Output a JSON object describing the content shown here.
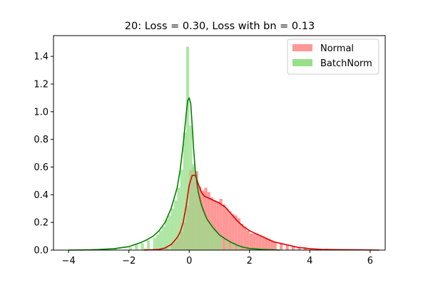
{
  "chart_data": {
    "type": "histogram-kde",
    "title": "20: Loss = 0.30, Loss with bn = 0.13",
    "xlabel": "",
    "ylabel": "",
    "xlim": [
      -4.5,
      6.5
    ],
    "ylim": [
      0,
      1.55
    ],
    "x_ticks": [
      -4,
      -2,
      0,
      2,
      4,
      6
    ],
    "x_tick_labels": [
      "−4",
      "−2",
      "0",
      "2",
      "4",
      "6"
    ],
    "y_ticks": [
      0.0,
      0.2,
      0.4,
      0.6,
      0.8,
      1.0,
      1.2,
      1.4
    ],
    "y_tick_labels": [
      "0.0",
      "0.2",
      "0.4",
      "0.6",
      "0.8",
      "1.0",
      "1.2",
      "1.4"
    ],
    "legend_position": "top-right",
    "series": [
      {
        "name": "Normal",
        "bar_color": "#ff9896",
        "line_color": "#dd0000",
        "bin_width": 0.1,
        "bins": [
          [
            -1.5,
            0.01
          ],
          [
            -1.0,
            0.01
          ],
          [
            -0.8,
            0.03
          ],
          [
            -0.6,
            0.05
          ],
          [
            -0.5,
            0.07
          ],
          [
            -0.4,
            0.09
          ],
          [
            -0.3,
            0.13
          ],
          [
            -0.2,
            0.2
          ],
          [
            -0.1,
            0.32
          ],
          [
            0.0,
            0.58
          ],
          [
            0.1,
            0.6
          ],
          [
            0.2,
            0.57
          ],
          [
            0.3,
            0.46
          ],
          [
            0.4,
            0.43
          ],
          [
            0.5,
            0.45
          ],
          [
            0.6,
            0.42
          ],
          [
            0.7,
            0.38
          ],
          [
            0.8,
            0.36
          ],
          [
            0.9,
            0.35
          ],
          [
            1.0,
            0.37
          ],
          [
            1.1,
            0.33
          ],
          [
            1.2,
            0.3
          ],
          [
            1.3,
            0.28
          ],
          [
            1.4,
            0.26
          ],
          [
            1.5,
            0.25
          ],
          [
            1.6,
            0.23
          ],
          [
            1.7,
            0.19
          ],
          [
            1.8,
            0.17
          ],
          [
            1.9,
            0.14
          ],
          [
            2.0,
            0.12
          ],
          [
            2.1,
            0.12
          ],
          [
            2.2,
            0.12
          ],
          [
            2.3,
            0.11
          ],
          [
            2.4,
            0.1
          ],
          [
            2.5,
            0.09
          ],
          [
            2.6,
            0.08
          ],
          [
            2.7,
            0.07
          ],
          [
            2.8,
            0.06
          ],
          [
            3.0,
            0.05
          ],
          [
            3.2,
            0.04
          ],
          [
            3.4,
            0.03
          ],
          [
            3.6,
            0.02
          ],
          [
            3.8,
            0.02
          ],
          [
            4.0,
            0.01
          ],
          [
            4.5,
            0.01
          ],
          [
            5.0,
            0.005
          ],
          [
            6.0,
            0.003
          ]
        ],
        "kde": [
          [
            -1.5,
            0.0
          ],
          [
            -1.0,
            0.005
          ],
          [
            -0.8,
            0.015
          ],
          [
            -0.6,
            0.04
          ],
          [
            -0.4,
            0.09
          ],
          [
            -0.3,
            0.13
          ],
          [
            -0.2,
            0.2
          ],
          [
            -0.1,
            0.32
          ],
          [
            0.0,
            0.47
          ],
          [
            0.1,
            0.54
          ],
          [
            0.2,
            0.54
          ],
          [
            0.3,
            0.48
          ],
          [
            0.4,
            0.42
          ],
          [
            0.5,
            0.39
          ],
          [
            0.6,
            0.38
          ],
          [
            0.7,
            0.37
          ],
          [
            0.8,
            0.36
          ],
          [
            0.9,
            0.35
          ],
          [
            1.0,
            0.34
          ],
          [
            1.2,
            0.31
          ],
          [
            1.4,
            0.26
          ],
          [
            1.6,
            0.21
          ],
          [
            1.8,
            0.17
          ],
          [
            2.0,
            0.14
          ],
          [
            2.2,
            0.12
          ],
          [
            2.4,
            0.1
          ],
          [
            2.6,
            0.08
          ],
          [
            2.8,
            0.06
          ],
          [
            3.0,
            0.05
          ],
          [
            3.2,
            0.04
          ],
          [
            3.4,
            0.03
          ],
          [
            3.6,
            0.02
          ],
          [
            3.8,
            0.015
          ],
          [
            4.0,
            0.01
          ],
          [
            4.4,
            0.005
          ],
          [
            5.0,
            0.003
          ],
          [
            5.6,
            0.002
          ],
          [
            6.3,
            0.0
          ]
        ]
      },
      {
        "name": "BatchNorm",
        "bar_color": "#98df8a",
        "line_color": "#008000",
        "bin_width": 0.1,
        "bins": [
          [
            -3.0,
            0.005
          ],
          [
            -2.5,
            0.01
          ],
          [
            -2.0,
            0.02
          ],
          [
            -1.8,
            0.04
          ],
          [
            -1.6,
            0.05
          ],
          [
            -1.4,
            0.07
          ],
          [
            -1.2,
            0.09
          ],
          [
            -1.1,
            0.11
          ],
          [
            -1.0,
            0.14
          ],
          [
            -0.9,
            0.17
          ],
          [
            -0.8,
            0.22
          ],
          [
            -0.7,
            0.25
          ],
          [
            -0.6,
            0.3
          ],
          [
            -0.5,
            0.36
          ],
          [
            -0.4,
            0.45
          ],
          [
            -0.3,
            0.58
          ],
          [
            -0.2,
            0.85
          ],
          [
            -0.1,
            1.47
          ],
          [
            0.0,
            0.9
          ],
          [
            0.1,
            0.62
          ],
          [
            0.2,
            0.45
          ],
          [
            0.3,
            0.35
          ],
          [
            0.4,
            0.28
          ],
          [
            0.5,
            0.24
          ],
          [
            0.6,
            0.2
          ],
          [
            0.7,
            0.17
          ],
          [
            0.8,
            0.14
          ],
          [
            0.9,
            0.12
          ],
          [
            1.0,
            0.1
          ],
          [
            1.2,
            0.07
          ],
          [
            1.4,
            0.05
          ],
          [
            1.6,
            0.04
          ],
          [
            1.8,
            0.02
          ],
          [
            2.0,
            0.01
          ],
          [
            2.4,
            0.005
          ],
          [
            2.8,
            0.003
          ]
        ],
        "kde": [
          [
            -4.0,
            0.0
          ],
          [
            -3.5,
            0.001
          ],
          [
            -3.0,
            0.004
          ],
          [
            -2.5,
            0.01
          ],
          [
            -2.0,
            0.025
          ],
          [
            -1.8,
            0.04
          ],
          [
            -1.6,
            0.055
          ],
          [
            -1.4,
            0.075
          ],
          [
            -1.2,
            0.1
          ],
          [
            -1.0,
            0.14
          ],
          [
            -0.8,
            0.2
          ],
          [
            -0.6,
            0.3
          ],
          [
            -0.4,
            0.45
          ],
          [
            -0.3,
            0.58
          ],
          [
            -0.2,
            0.76
          ],
          [
            -0.1,
            0.98
          ],
          [
            -0.05,
            1.08
          ],
          [
            0.0,
            1.1
          ],
          [
            0.05,
            1.06
          ],
          [
            0.1,
            0.9
          ],
          [
            0.15,
            0.72
          ],
          [
            0.2,
            0.58
          ],
          [
            0.3,
            0.42
          ],
          [
            0.4,
            0.33
          ],
          [
            0.5,
            0.27
          ],
          [
            0.6,
            0.22
          ],
          [
            0.8,
            0.16
          ],
          [
            1.0,
            0.11
          ],
          [
            1.2,
            0.08
          ],
          [
            1.4,
            0.055
          ],
          [
            1.6,
            0.035
          ],
          [
            1.8,
            0.02
          ],
          [
            2.0,
            0.012
          ],
          [
            2.4,
            0.005
          ],
          [
            2.8,
            0.002
          ],
          [
            3.0,
            0.0
          ]
        ]
      }
    ]
  }
}
